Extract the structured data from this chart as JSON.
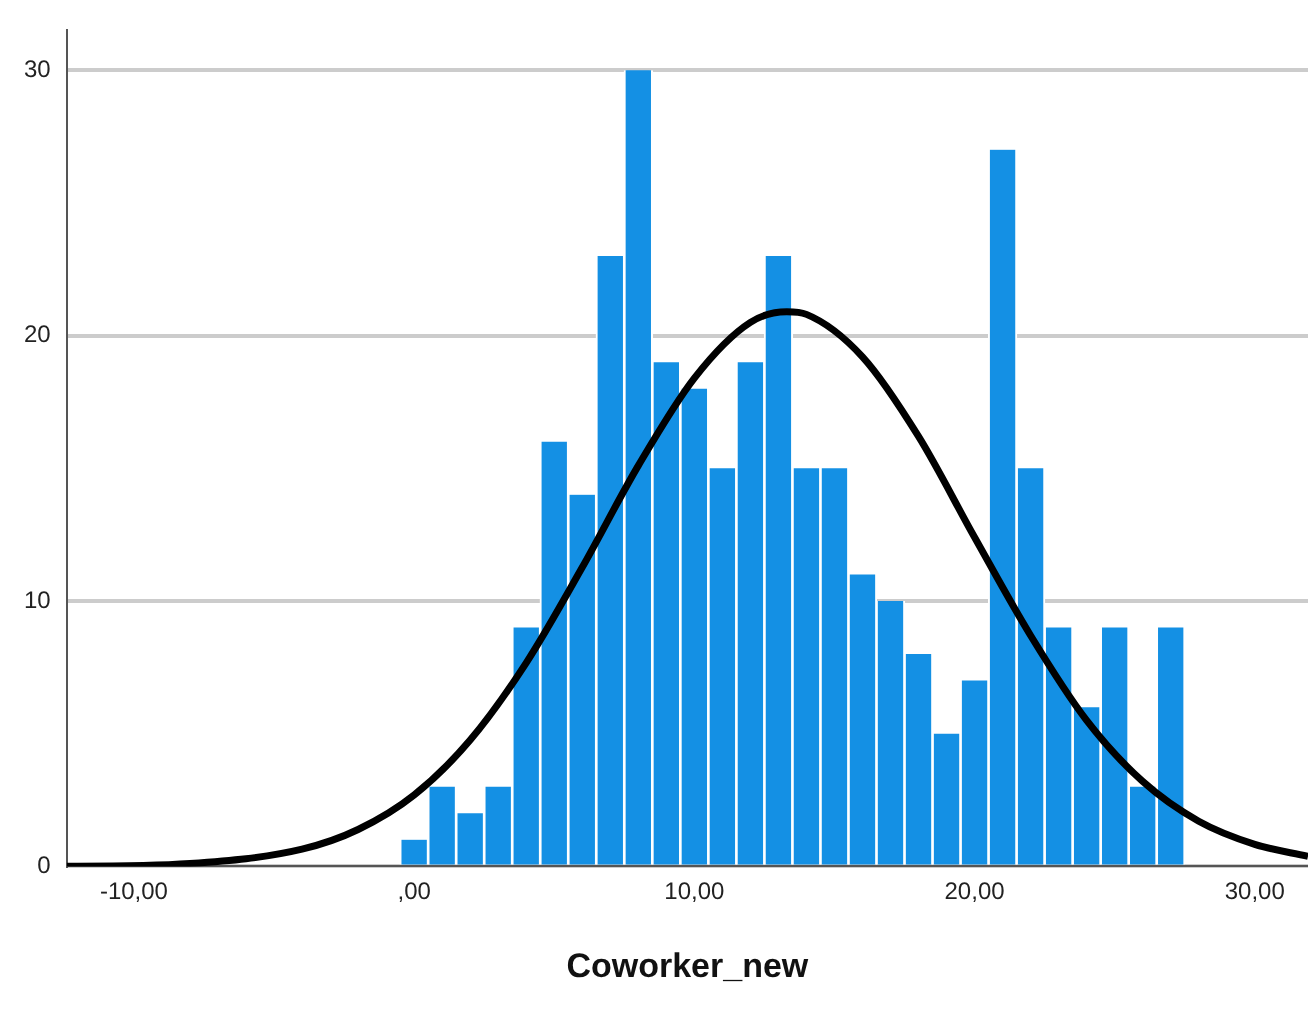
{
  "chart_data": {
    "type": "histogram",
    "xlabel": "Coworker_new",
    "bins": [
      -0.5,
      0.5,
      1.5,
      2.5,
      3.5,
      4.5,
      5.5,
      6.5,
      7.5,
      8.5,
      9.5,
      10.5,
      11.5,
      12.5,
      13.5,
      14.5,
      15.5,
      16.5,
      17.5,
      18.5,
      19.5,
      20.5,
      21.5,
      22.5,
      23.5,
      24.5,
      25.5,
      26.5,
      27.5
    ],
    "series": [
      {
        "color": "#1490e4",
        "values": [
          1,
          3,
          2,
          3,
          9,
          16,
          14,
          23,
          30,
          19,
          18,
          15,
          19,
          23,
          15,
          15,
          11,
          10,
          8,
          5,
          7,
          27,
          15,
          9,
          6,
          9,
          3,
          9
        ]
      },
      {
        "type": "line",
        "color": "#000000",
        "x": [
          -12.4,
          -12,
          -8,
          -4,
          -2,
          0,
          2,
          4,
          6,
          8,
          10,
          12,
          13.3,
          14,
          16,
          18,
          20,
          22,
          24,
          26,
          28,
          30,
          31.9
        ],
        "values": [
          0.01,
          0.01,
          0.11,
          0.65,
          1.39,
          2.69,
          4.76,
          7.67,
          11.27,
          15.1,
          18.4,
          20.5,
          20.9,
          20.8,
          19.2,
          16.2,
          12.4,
          8.7,
          5.5,
          3.2,
          1.7,
          0.83,
          0.38
        ]
      }
    ],
    "xlim": [
      -12.4,
      31.9
    ],
    "xticks": [
      {
        "value": -10,
        "label": "-10,00"
      },
      {
        "value": 0,
        "label": ",00"
      },
      {
        "value": 10,
        "label": "10,00"
      },
      {
        "value": 20,
        "label": "20,00"
      },
      {
        "value": 30,
        "label": "30,00"
      }
    ],
    "ylim": [
      0,
      31.5
    ],
    "yticks": [
      0,
      10,
      20,
      30
    ],
    "grid": "y",
    "legend": false,
    "marker": "none",
    "line_style": "solid"
  }
}
